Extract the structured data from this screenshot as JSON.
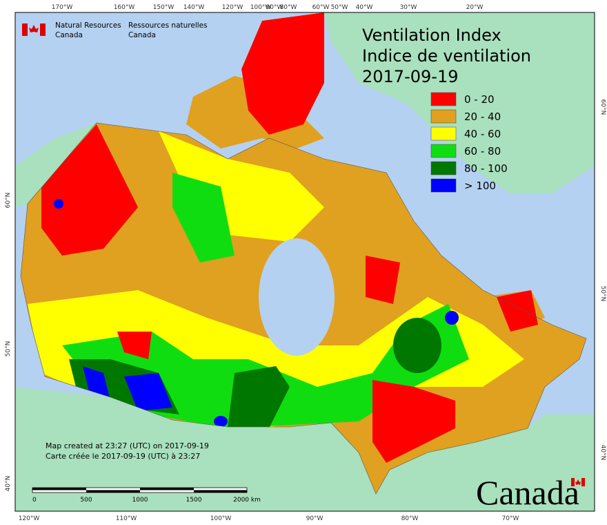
{
  "header": {
    "org_en": [
      "Natural Resources",
      "Canada"
    ],
    "org_fr": [
      "Ressources naturelles",
      "Canada"
    ]
  },
  "title": [
    "Ventilation Index",
    "Indice de ventilation",
    "2017-09-19"
  ],
  "legend": [
    {
      "label": "0 - 20",
      "color": "#ff0000"
    },
    {
      "label": "20 - 40",
      "color": "#e0a020"
    },
    {
      "label": "40 - 60",
      "color": "#ffff00"
    },
    {
      "label": "60 - 80",
      "color": "#10dd10"
    },
    {
      "label": "80 - 100",
      "color": "#007800"
    },
    {
      "label": "> 100",
      "color": "#0000ff"
    }
  ],
  "graticule": {
    "top": [
      "170°W",
      "160°W",
      "150°W",
      "140°W",
      "120°W",
      "100°W",
      "90°W",
      "80°W",
      "60°W",
      "50°W",
      "40°W",
      "30°W",
      "20°W"
    ],
    "bottom": [
      "120°W",
      "110°W",
      "100°W",
      "90°W",
      "80°W",
      "70°W"
    ],
    "left": [
      "60°N",
      "50°N",
      "40°N"
    ],
    "right": [
      "60°N",
      "50°N",
      "40°N"
    ]
  },
  "scale_bar": [
    "0",
    "500",
    "1000",
    "1500",
    "2000 km"
  ],
  "notes": [
    "Map created at 23:27 (UTC) on 2017-09-19",
    "Carte créée le 2017-09-19 (UTC) à 23:27"
  ],
  "wordmark": "Canada"
}
